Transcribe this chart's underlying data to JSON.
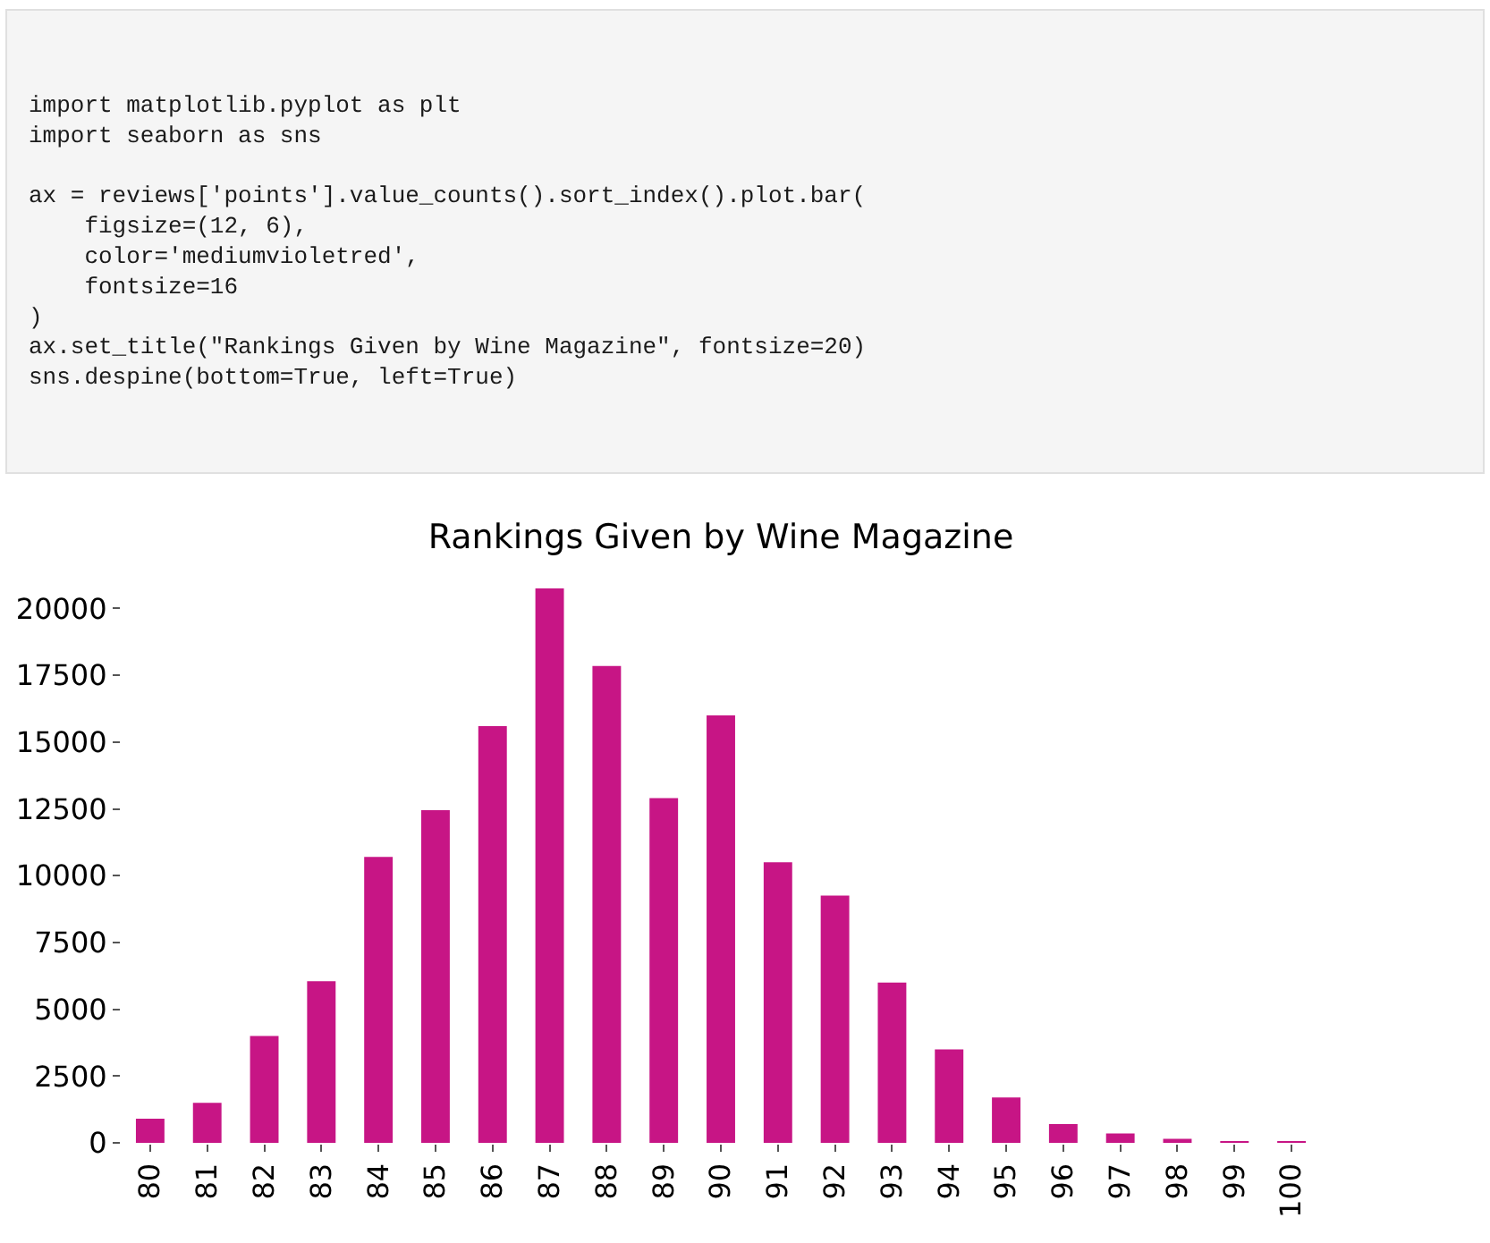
{
  "chart_data": {
    "type": "bar",
    "title": "Rankings Given by Wine Magazine",
    "categories": [
      "80",
      "81",
      "82",
      "83",
      "84",
      "85",
      "86",
      "87",
      "88",
      "89",
      "90",
      "91",
      "92",
      "93",
      "94",
      "95",
      "96",
      "97",
      "98",
      "99",
      "100"
    ],
    "values": [
      900,
      1500,
      4000,
      6050,
      10700,
      12450,
      15600,
      20750,
      17850,
      12900,
      16000,
      10500,
      9250,
      6000,
      3500,
      1700,
      700,
      350,
      150,
      50,
      20
    ],
    "color": "#c71585",
    "ylim": [
      0,
      20750
    ],
    "yticks": [
      0,
      2500,
      5000,
      7500,
      10000,
      12500,
      15000,
      17500,
      20000
    ],
    "annotations": [
      "import matplotlib.pyplot as plt\nimport seaborn as sns\n\nax = reviews['points'].value_counts().sort_index().plot.bar(\n    figsize=(12, 6),\n    color='mediumvioletred',\n    fontsize=16\n)\nax.set_title(\"Rankings Given by Wine Magazine\", fontsize=20)\nsns.despine(bottom=True, left=True)"
    ]
  }
}
